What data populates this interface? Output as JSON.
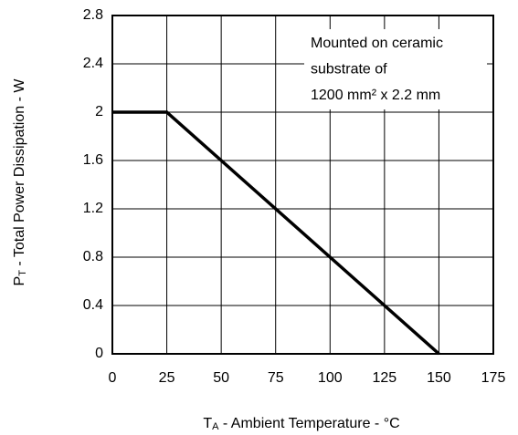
{
  "chart_data": {
    "type": "line",
    "x": [
      0,
      25,
      150
    ],
    "values": [
      2,
      2,
      0
    ],
    "color": "#000000",
    "xlim": [
      0,
      175
    ],
    "xticks": [
      0,
      25,
      50,
      75,
      100,
      125,
      150,
      175
    ],
    "ylim": [
      0,
      2.8
    ],
    "yticks": [
      0,
      0.4,
      0.8,
      1.2,
      1.6,
      2,
      2.4,
      2.8
    ],
    "grid": true,
    "xlabel": [
      "T",
      "A",
      " - Ambient Temperature - °C"
    ],
    "ylabel": [
      "P",
      "T",
      " - Total Power Dissipation - W"
    ],
    "annotation": [
      "Mounted on ceramic",
      "substrate of",
      "1200 mm² x 2.2 mm"
    ]
  }
}
